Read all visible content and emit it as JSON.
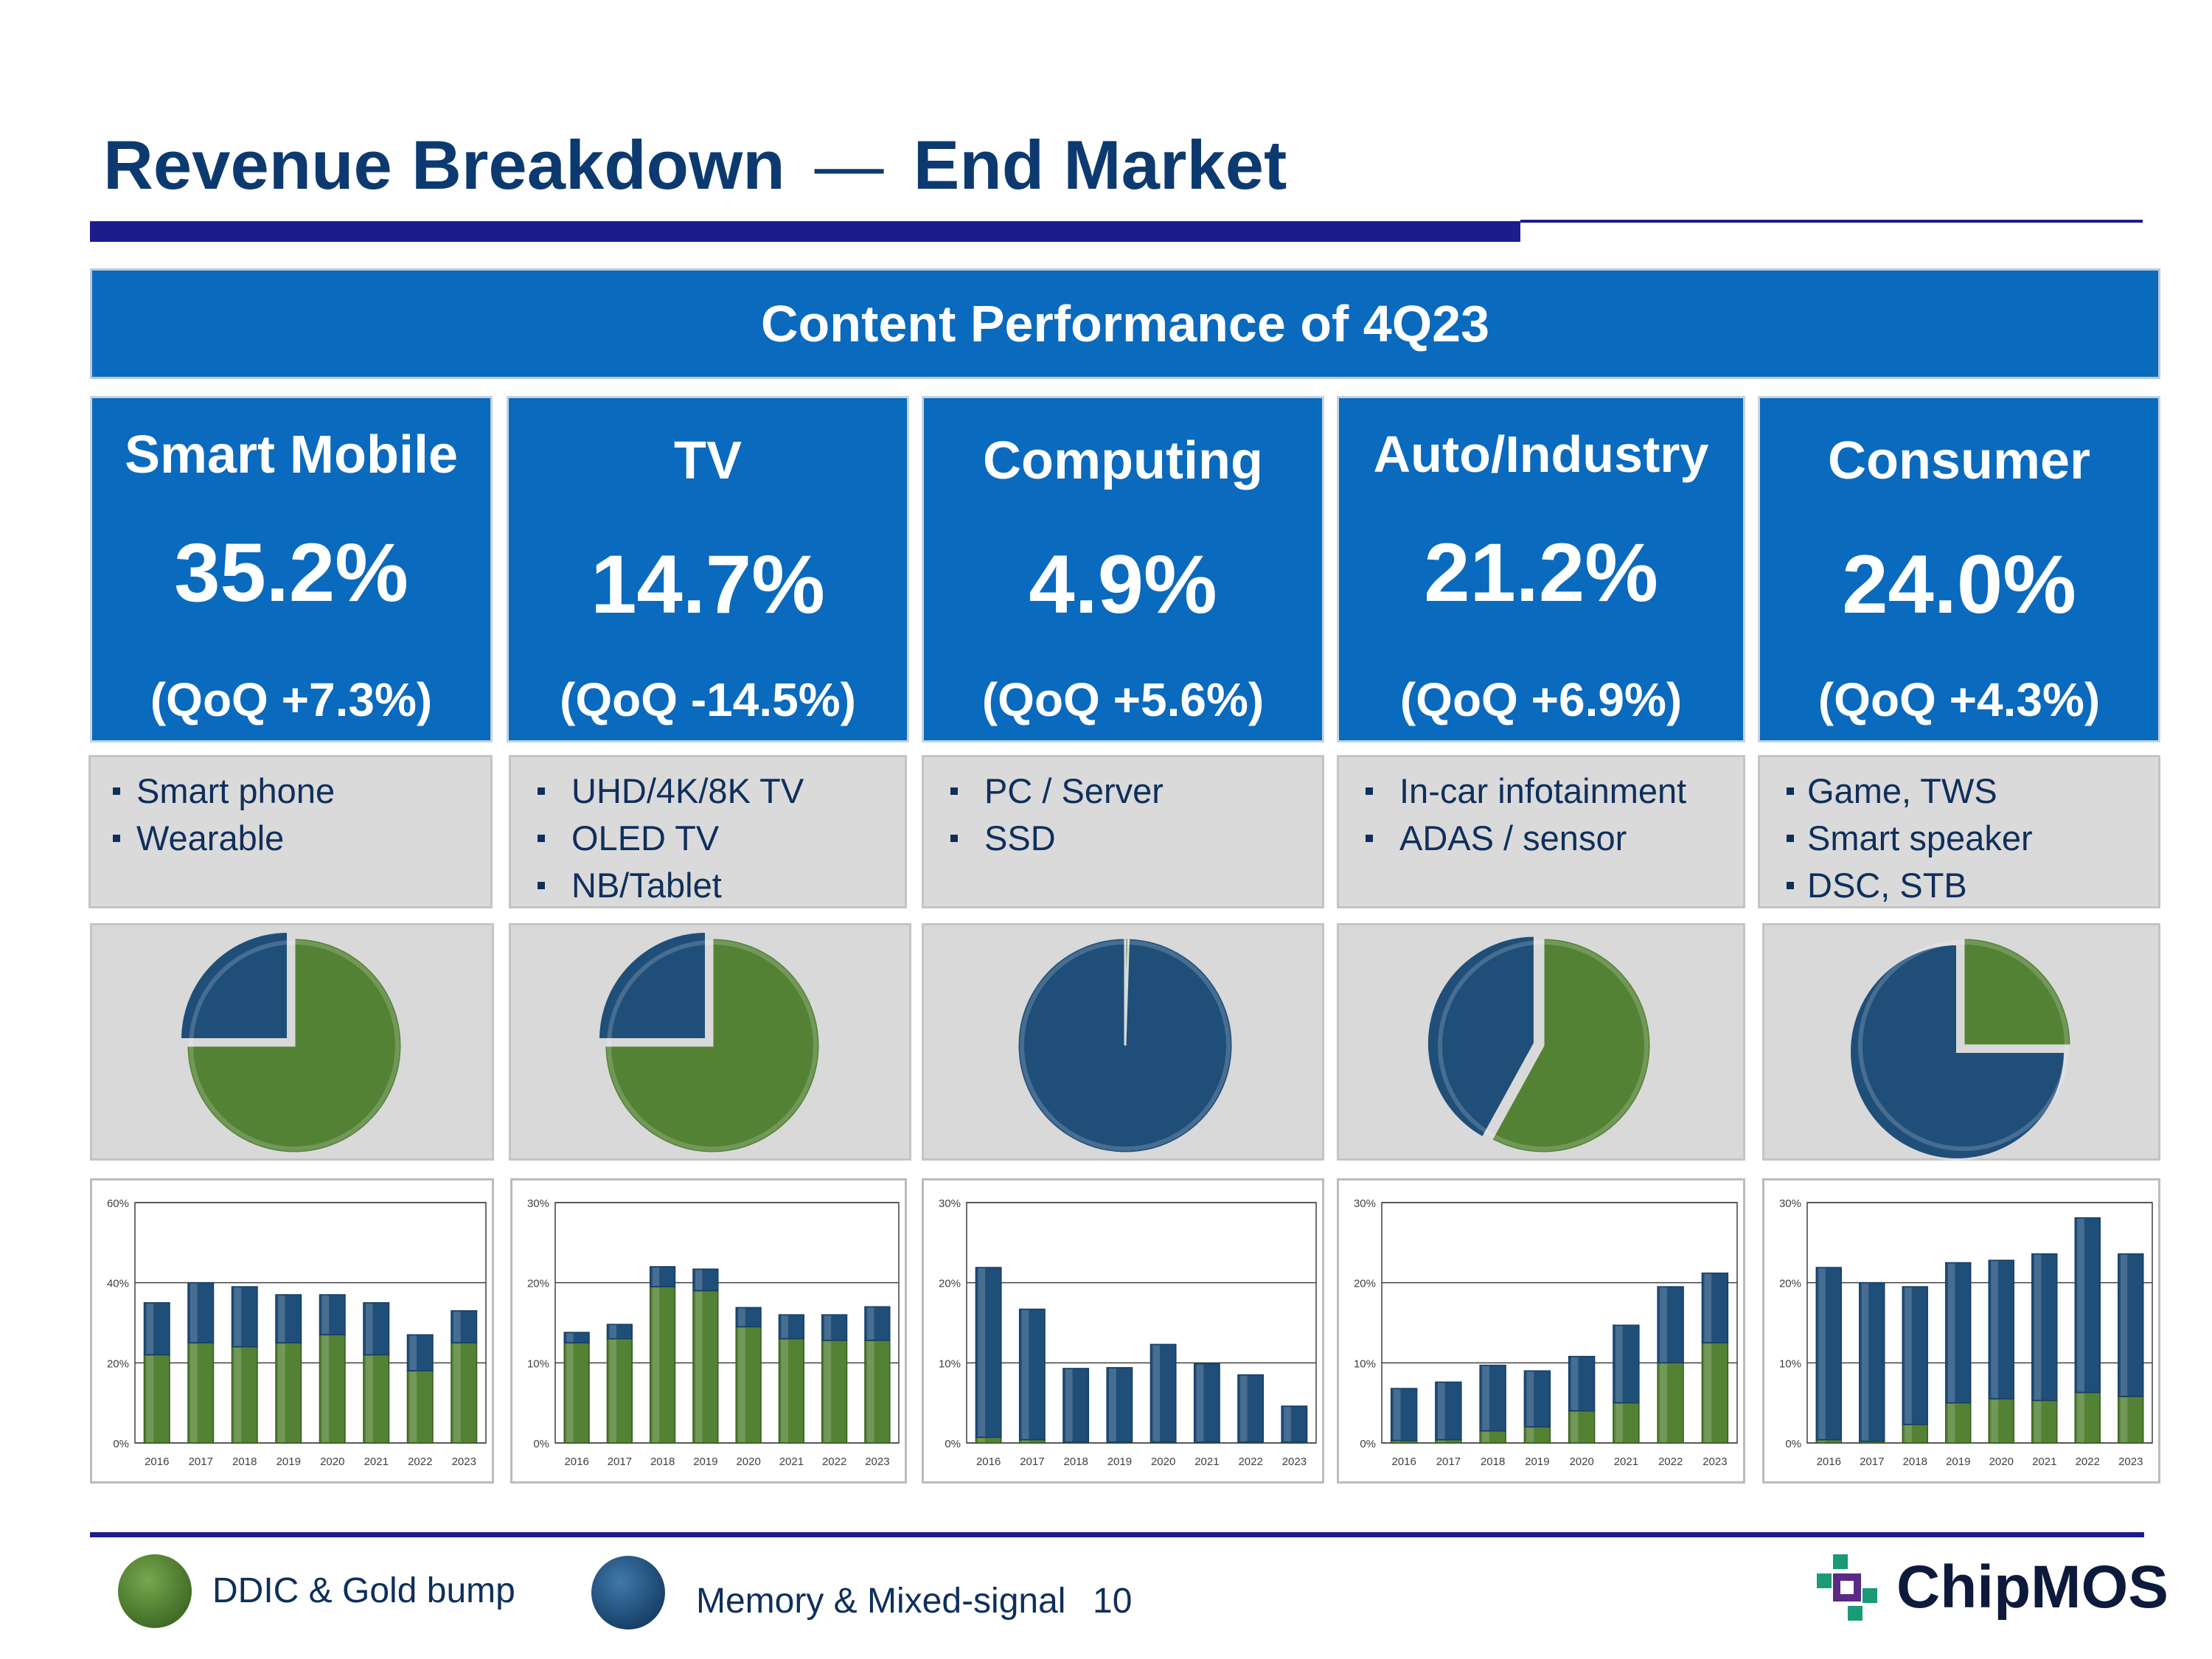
{
  "header": {
    "title_left": "Revenue Breakdown",
    "title_dash": "—",
    "title_right": "End Market"
  },
  "banner": {
    "text": "Content Performance of 4Q23"
  },
  "colors": {
    "accent_blue": "#0a6abd",
    "ddic_green": "#548235",
    "memory_blue": "#1f4e79",
    "title_navy": "#0c3a70"
  },
  "segments": [
    {
      "name": "Smart Mobile",
      "share": "35.2%",
      "qoq": "(QoQ +7.3%)",
      "apps": [
        "Smart phone",
        "Wearable"
      ]
    },
    {
      "name": "TV",
      "share": "14.7%",
      "qoq": "(QoQ -14.5%)",
      "apps": [
        "UHD/4K/8K TV",
        "OLED TV",
        "NB/Tablet"
      ]
    },
    {
      "name": "Computing",
      "share": "4.9%",
      "qoq": "(QoQ +5.6%)",
      "apps": [
        "PC / Server",
        "SSD"
      ]
    },
    {
      "name": "Auto/Industry",
      "share": "21.2%",
      "qoq": "(QoQ +6.9%)",
      "apps": [
        "In-car infotainment",
        "ADAS / sensor"
      ]
    },
    {
      "name": "Consumer",
      "share": "24.0%",
      "qoq": "(QoQ +4.3%)",
      "apps": [
        "Game, TWS",
        "Smart speaker",
        "DSC, STB"
      ]
    }
  ],
  "legend": {
    "ddic": "DDIC & Gold bump",
    "memory": "Memory & Mixed-signal"
  },
  "footer": {
    "page_number": "10",
    "logo": "ChipMOS"
  },
  "chart_data": [
    {
      "type": "pie",
      "title": "Smart Mobile",
      "labels": [
        "DDIC & Gold bump",
        "Memory & Mixed-signal"
      ],
      "values": [
        75,
        25
      ]
    },
    {
      "type": "pie",
      "title": "TV",
      "labels": [
        "DDIC & Gold bump",
        "Memory & Mixed-signal"
      ],
      "values": [
        75,
        25
      ]
    },
    {
      "type": "pie",
      "title": "Computing",
      "labels": [
        "DDIC & Gold bump",
        "Memory & Mixed-signal"
      ],
      "values": [
        0.5,
        99.5
      ]
    },
    {
      "type": "pie",
      "title": "Auto/Industry",
      "labels": [
        "DDIC & Gold bump",
        "Memory & Mixed-signal"
      ],
      "values": [
        58,
        42
      ]
    },
    {
      "type": "pie",
      "title": "Consumer",
      "labels": [
        "DDIC & Gold bump",
        "Memory & Mixed-signal"
      ],
      "values": [
        25,
        75
      ]
    },
    {
      "type": "bar",
      "stacked": true,
      "title": "Smart Mobile",
      "categories": [
        "2016",
        "2017",
        "2018",
        "2019",
        "2020",
        "2021",
        "2022",
        "2023"
      ],
      "ylim": [
        0,
        60
      ],
      "yticks": [
        "0%",
        "20%",
        "40%",
        "60%"
      ],
      "series": [
        {
          "name": "DDIC & Gold bump",
          "values": [
            22,
            25,
            24,
            25,
            27,
            22,
            18,
            25
          ]
        },
        {
          "name": "Memory & Mixed-signal",
          "values": [
            13,
            15,
            15,
            12,
            10,
            13,
            9,
            8
          ]
        }
      ]
    },
    {
      "type": "bar",
      "stacked": true,
      "title": "TV",
      "categories": [
        "2016",
        "2017",
        "2018",
        "2019",
        "2020",
        "2021",
        "2022",
        "2023"
      ],
      "ylim": [
        0,
        30
      ],
      "yticks": [
        "0%",
        "10%",
        "20%",
        "30%"
      ],
      "series": [
        {
          "name": "DDIC & Gold bump",
          "values": [
            12.5,
            13,
            19.5,
            19,
            14.5,
            13,
            12.8,
            12.8
          ]
        },
        {
          "name": "Memory & Mixed-signal",
          "values": [
            1.3,
            1.8,
            2.5,
            2.7,
            2.4,
            3.0,
            3.2,
            4.2
          ]
        }
      ]
    },
    {
      "type": "bar",
      "stacked": true,
      "title": "Computing",
      "categories": [
        "2016",
        "2017",
        "2018",
        "2019",
        "2020",
        "2021",
        "2022",
        "2023"
      ],
      "ylim": [
        0,
        30
      ],
      "yticks": [
        "0%",
        "10%",
        "20%",
        "30%"
      ],
      "series": [
        {
          "name": "DDIC & Gold bump",
          "values": [
            0.7,
            0.4,
            0.1,
            0.1,
            0.1,
            0.1,
            0.1,
            0.1
          ]
        },
        {
          "name": "Memory & Mixed-signal",
          "values": [
            21.2,
            16.3,
            9.2,
            9.3,
            12.2,
            9.8,
            8.4,
            4.5
          ]
        }
      ]
    },
    {
      "type": "bar",
      "stacked": true,
      "title": "Auto/Industry",
      "categories": [
        "2016",
        "2017",
        "2018",
        "2019",
        "2020",
        "2021",
        "2022",
        "2023"
      ],
      "ylim": [
        0,
        30
      ],
      "yticks": [
        "0%",
        "10%",
        "20%",
        "30%"
      ],
      "series": [
        {
          "name": "DDIC & Gold bump",
          "values": [
            0.3,
            0.4,
            1.5,
            2.0,
            4.0,
            5.0,
            10.0,
            12.5
          ]
        },
        {
          "name": "Memory & Mixed-signal",
          "values": [
            6.5,
            7.2,
            8.2,
            7.0,
            6.8,
            9.7,
            9.5,
            8.7
          ]
        }
      ]
    },
    {
      "type": "bar",
      "stacked": true,
      "title": "Consumer",
      "categories": [
        "2016",
        "2017",
        "2018",
        "2019",
        "2020",
        "2021",
        "2022",
        "2023"
      ],
      "ylim": [
        0,
        30
      ],
      "yticks": [
        "0%",
        "10%",
        "20%",
        "30%"
      ],
      "series": [
        {
          "name": "DDIC & Gold bump",
          "values": [
            0.4,
            0.2,
            2.3,
            5.0,
            5.5,
            5.3,
            6.3,
            5.8
          ]
        },
        {
          "name": "Memory & Mixed-signal",
          "values": [
            21.5,
            19.8,
            17.2,
            17.5,
            17.3,
            18.3,
            21.8,
            17.8
          ]
        }
      ]
    }
  ]
}
